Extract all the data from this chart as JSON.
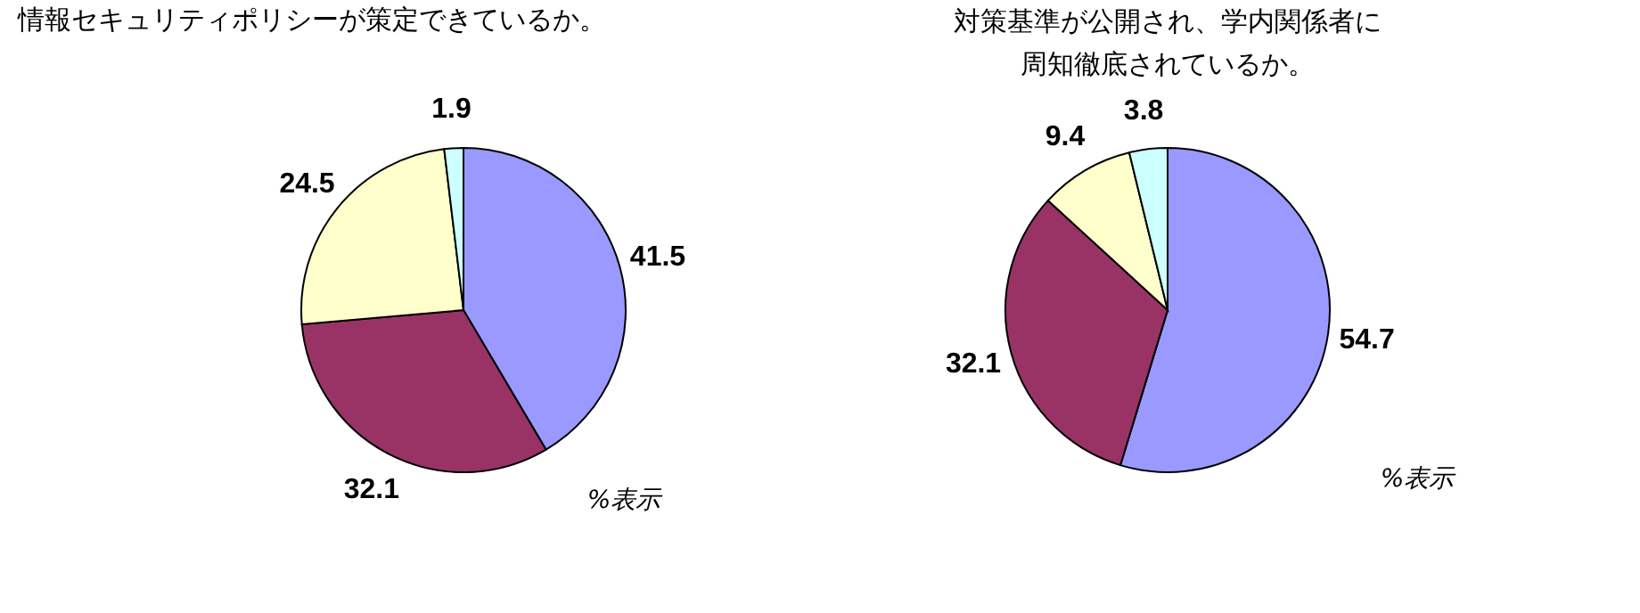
{
  "chart_data": [
    {
      "type": "pie",
      "title": "情報セキュリティポリシーが策定できているか。",
      "categories": [
        null,
        null,
        null,
        null
      ],
      "values": [
        41.5,
        32.1,
        24.5,
        1.9
      ],
      "colors": [
        "#9999ff",
        "#993366",
        "#ffffcc",
        "#ccffff"
      ],
      "data_labels": true,
      "annotations": [
        "%表示"
      ]
    },
    {
      "type": "pie",
      "title": "対策基準が公開され、学内関係者に周知徹底されているか。",
      "categories": [
        null,
        null,
        null,
        null
      ],
      "values": [
        54.7,
        32.1,
        9.4,
        3.8
      ],
      "colors": [
        "#9999ff",
        "#993366",
        "#ffffcc",
        "#ccffff"
      ],
      "data_labels": true,
      "annotations": [
        "%表示"
      ]
    }
  ]
}
